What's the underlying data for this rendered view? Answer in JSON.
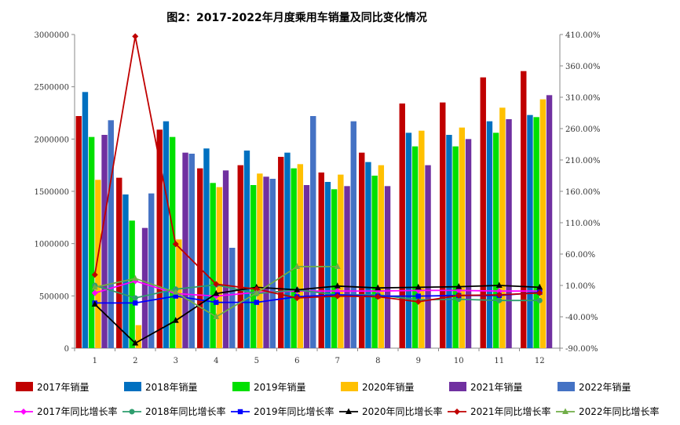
{
  "chart_data": {
    "type": "bar",
    "title": "图2：2017-2022年月度乘用车销量及同比变化情况",
    "categories": [
      "1",
      "2",
      "3",
      "4",
      "5",
      "6",
      "7",
      "8",
      "9",
      "10",
      "11",
      "12"
    ],
    "ylim": [
      0,
      3000000
    ],
    "y_ticks": [
      "0",
      "500000",
      "1000000",
      "1500000",
      "2000000",
      "2500000",
      "3000000"
    ],
    "y2lim": [
      -90,
      410
    ],
    "y2_ticks": [
      "-90.00%",
      "-40.00%",
      "10.00%",
      "60.00%",
      "110.00%",
      "160.00%",
      "210.00%",
      "260.00%",
      "310.00%",
      "360.00%",
      "410.00%"
    ],
    "bar_series": [
      {
        "name": "2017年销量",
        "color": "#C00000",
        "values": [
          2220000,
          1630000,
          2090000,
          1720000,
          1750000,
          1830000,
          1680000,
          1870000,
          2340000,
          2350000,
          2590000,
          2650000
        ]
      },
      {
        "name": "2018年销量",
        "color": "#0070C0",
        "values": [
          2450000,
          1470000,
          2170000,
          1910000,
          1890000,
          1870000,
          1590000,
          1780000,
          2060000,
          2040000,
          2170000,
          2230000
        ]
      },
      {
        "name": "2019年销量",
        "color": "#00E000",
        "values": [
          2020000,
          1220000,
          2020000,
          1580000,
          1560000,
          1720000,
          1520000,
          1650000,
          1930000,
          1930000,
          2060000,
          2210000
        ]
      },
      {
        "name": "2020年销量",
        "color": "#FFC000",
        "values": [
          1610000,
          220000,
          1040000,
          1540000,
          1670000,
          1760000,
          1660000,
          1750000,
          2080000,
          2110000,
          2300000,
          2380000
        ]
      },
      {
        "name": "2021年销量",
        "color": "#7030A0",
        "values": [
          2040000,
          1150000,
          1870000,
          1700000,
          1640000,
          1560000,
          1550000,
          1550000,
          1750000,
          2000000,
          2190000,
          2420000
        ]
      },
      {
        "name": "2022年销量",
        "color": "#4472C4",
        "values": [
          2180000,
          1480000,
          1860000,
          960000,
          1620000,
          2220000,
          2170000,
          null,
          null,
          null,
          null,
          null
        ]
      }
    ],
    "line_series": [
      {
        "name": "2017年同比增长率",
        "color": "#FF00FF",
        "marker": "diamond",
        "values": [
          -2,
          17,
          -3,
          -7,
          -1,
          1,
          1,
          1,
          2,
          2,
          1,
          1
        ]
      },
      {
        "name": "2018年同比增长率",
        "color": "#2E9E6E",
        "marker": "circle",
        "values": [
          10,
          -10,
          4,
          11,
          -3,
          3,
          -5,
          -5,
          -13,
          -12,
          -14,
          -14
        ]
      },
      {
        "name": "2019年同比增长率",
        "color": "#0000FF",
        "marker": "square",
        "values": [
          -18,
          -18,
          -7,
          -17,
          -17,
          -8,
          -5,
          -7,
          -7,
          -6,
          -6,
          -1
        ]
      },
      {
        "name": "2020年同比增长率",
        "color": "#000000",
        "marker": "triangle",
        "values": [
          -20,
          -82,
          -46,
          -3,
          7,
          3,
          9,
          6,
          7,
          8,
          10,
          7
        ]
      },
      {
        "name": "2021年同比增长率",
        "color": "#C00000",
        "marker": "diamond",
        "values": [
          27,
          407,
          76,
          12,
          4,
          -10,
          -7,
          -8,
          -16,
          -6,
          -5,
          -2
        ]
      },
      {
        "name": "2022年同比增长率",
        "color": "#70AD47",
        "marker": "triangle",
        "values": [
          7,
          21,
          -1,
          -40,
          -2,
          40,
          40,
          null,
          null,
          null,
          null,
          null
        ]
      }
    ]
  }
}
